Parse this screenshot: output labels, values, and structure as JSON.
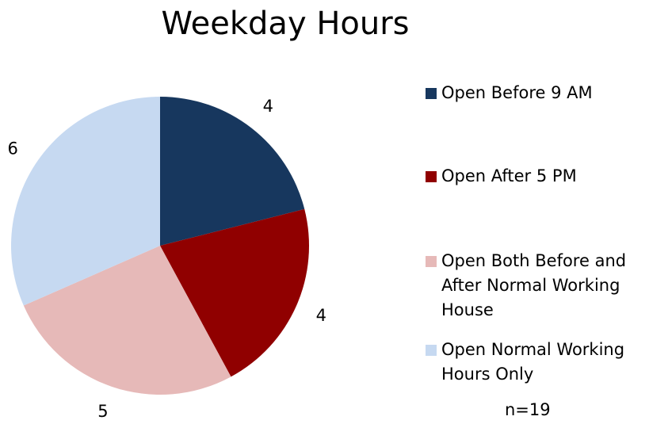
{
  "chart_data": {
    "type": "pie",
    "title": "Weekday Hours",
    "categories": [
      "Open Before 9 AM",
      "Open After 5 PM",
      "Open Both Before and After Normal Working House",
      "Open Normal Working Hours Only"
    ],
    "values": [
      4,
      4,
      5,
      6
    ],
    "colors": [
      "#17375e",
      "#900000",
      "#e6b9b8",
      "#c6d9f1"
    ],
    "annotation": "n=19"
  }
}
